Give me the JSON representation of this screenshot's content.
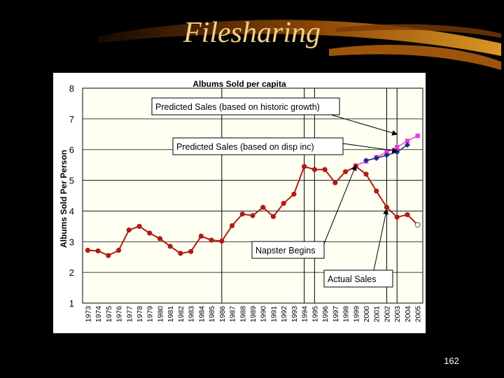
{
  "slide": {
    "title": "Filesharing",
    "page_number": "162"
  },
  "colors": {
    "background": "#000000",
    "title": "#f2cf86",
    "plot_area": "#fffff2",
    "actual_sales": "#b01c12",
    "predicted_historic": "#e040e8",
    "predicted_disp_inc": "#1f2a80",
    "annotation_fill": "#ffffff"
  },
  "chart_data": {
    "type": "line",
    "title": "Albums Sold per capita",
    "ylabel": "Albums Sold Per Person",
    "xlabel": "",
    "ylim": [
      1,
      8
    ],
    "yticks": [
      1,
      2,
      3,
      4,
      5,
      6,
      7,
      8
    ],
    "grid": "horizontal",
    "x": [
      "1973",
      "1974",
      "1975",
      "1976",
      "1977",
      "1978",
      "1979",
      "1980",
      "1981",
      "1982",
      "1983",
      "1984",
      "1985",
      "1986",
      "1987",
      "1988",
      "1989",
      "1990",
      "1991",
      "1992",
      "1993",
      "1994",
      "1995",
      "1996",
      "1997",
      "1998",
      "1999",
      "2000",
      "2001",
      "2002",
      "2003",
      "2004",
      "2005"
    ],
    "series": [
      {
        "key": "actual",
        "values": [
          2.72,
          2.7,
          2.55,
          2.72,
          3.38,
          3.5,
          3.28,
          3.1,
          2.85,
          2.62,
          2.68,
          3.18,
          3.05,
          3.02,
          3.52,
          3.9,
          3.85,
          4.12,
          3.82,
          4.25,
          4.55,
          5.45,
          5.35,
          5.35,
          4.92,
          5.28,
          5.45,
          5.2,
          4.65,
          4.12,
          3.8,
          3.88,
          3.55
        ],
        "open_marker_index": 32
      },
      {
        "key": "predicted_historic",
        "values": [
          null,
          null,
          null,
          null,
          null,
          null,
          null,
          null,
          null,
          null,
          null,
          null,
          null,
          null,
          null,
          null,
          null,
          null,
          null,
          null,
          null,
          null,
          null,
          null,
          null,
          null,
          5.48,
          5.62,
          5.75,
          5.92,
          6.08,
          6.28,
          6.45
        ]
      },
      {
        "key": "predicted_disp_inc",
        "values": [
          null,
          null,
          null,
          null,
          null,
          null,
          null,
          null,
          null,
          null,
          null,
          null,
          null,
          null,
          null,
          null,
          null,
          null,
          null,
          null,
          null,
          null,
          null,
          null,
          null,
          null,
          null,
          5.65,
          5.72,
          5.82,
          5.92,
          6.15,
          null
        ]
      }
    ],
    "reference_lines": [
      "1986",
      "1994",
      "1995",
      "2002",
      "2003"
    ],
    "annotations": [
      {
        "text": "Predicted Sales (based on historic growth)",
        "target_year": "2003",
        "target_value": 6.5
      },
      {
        "text": "Predicted Sales (based on disp inc)",
        "target_year": "2003",
        "target_value": 5.95
      },
      {
        "text": "Napster Begins",
        "target_year": "1999",
        "target_value": 5.48
      },
      {
        "text": "Actual Sales",
        "target_year": "2002",
        "target_value": 4.05
      }
    ]
  }
}
